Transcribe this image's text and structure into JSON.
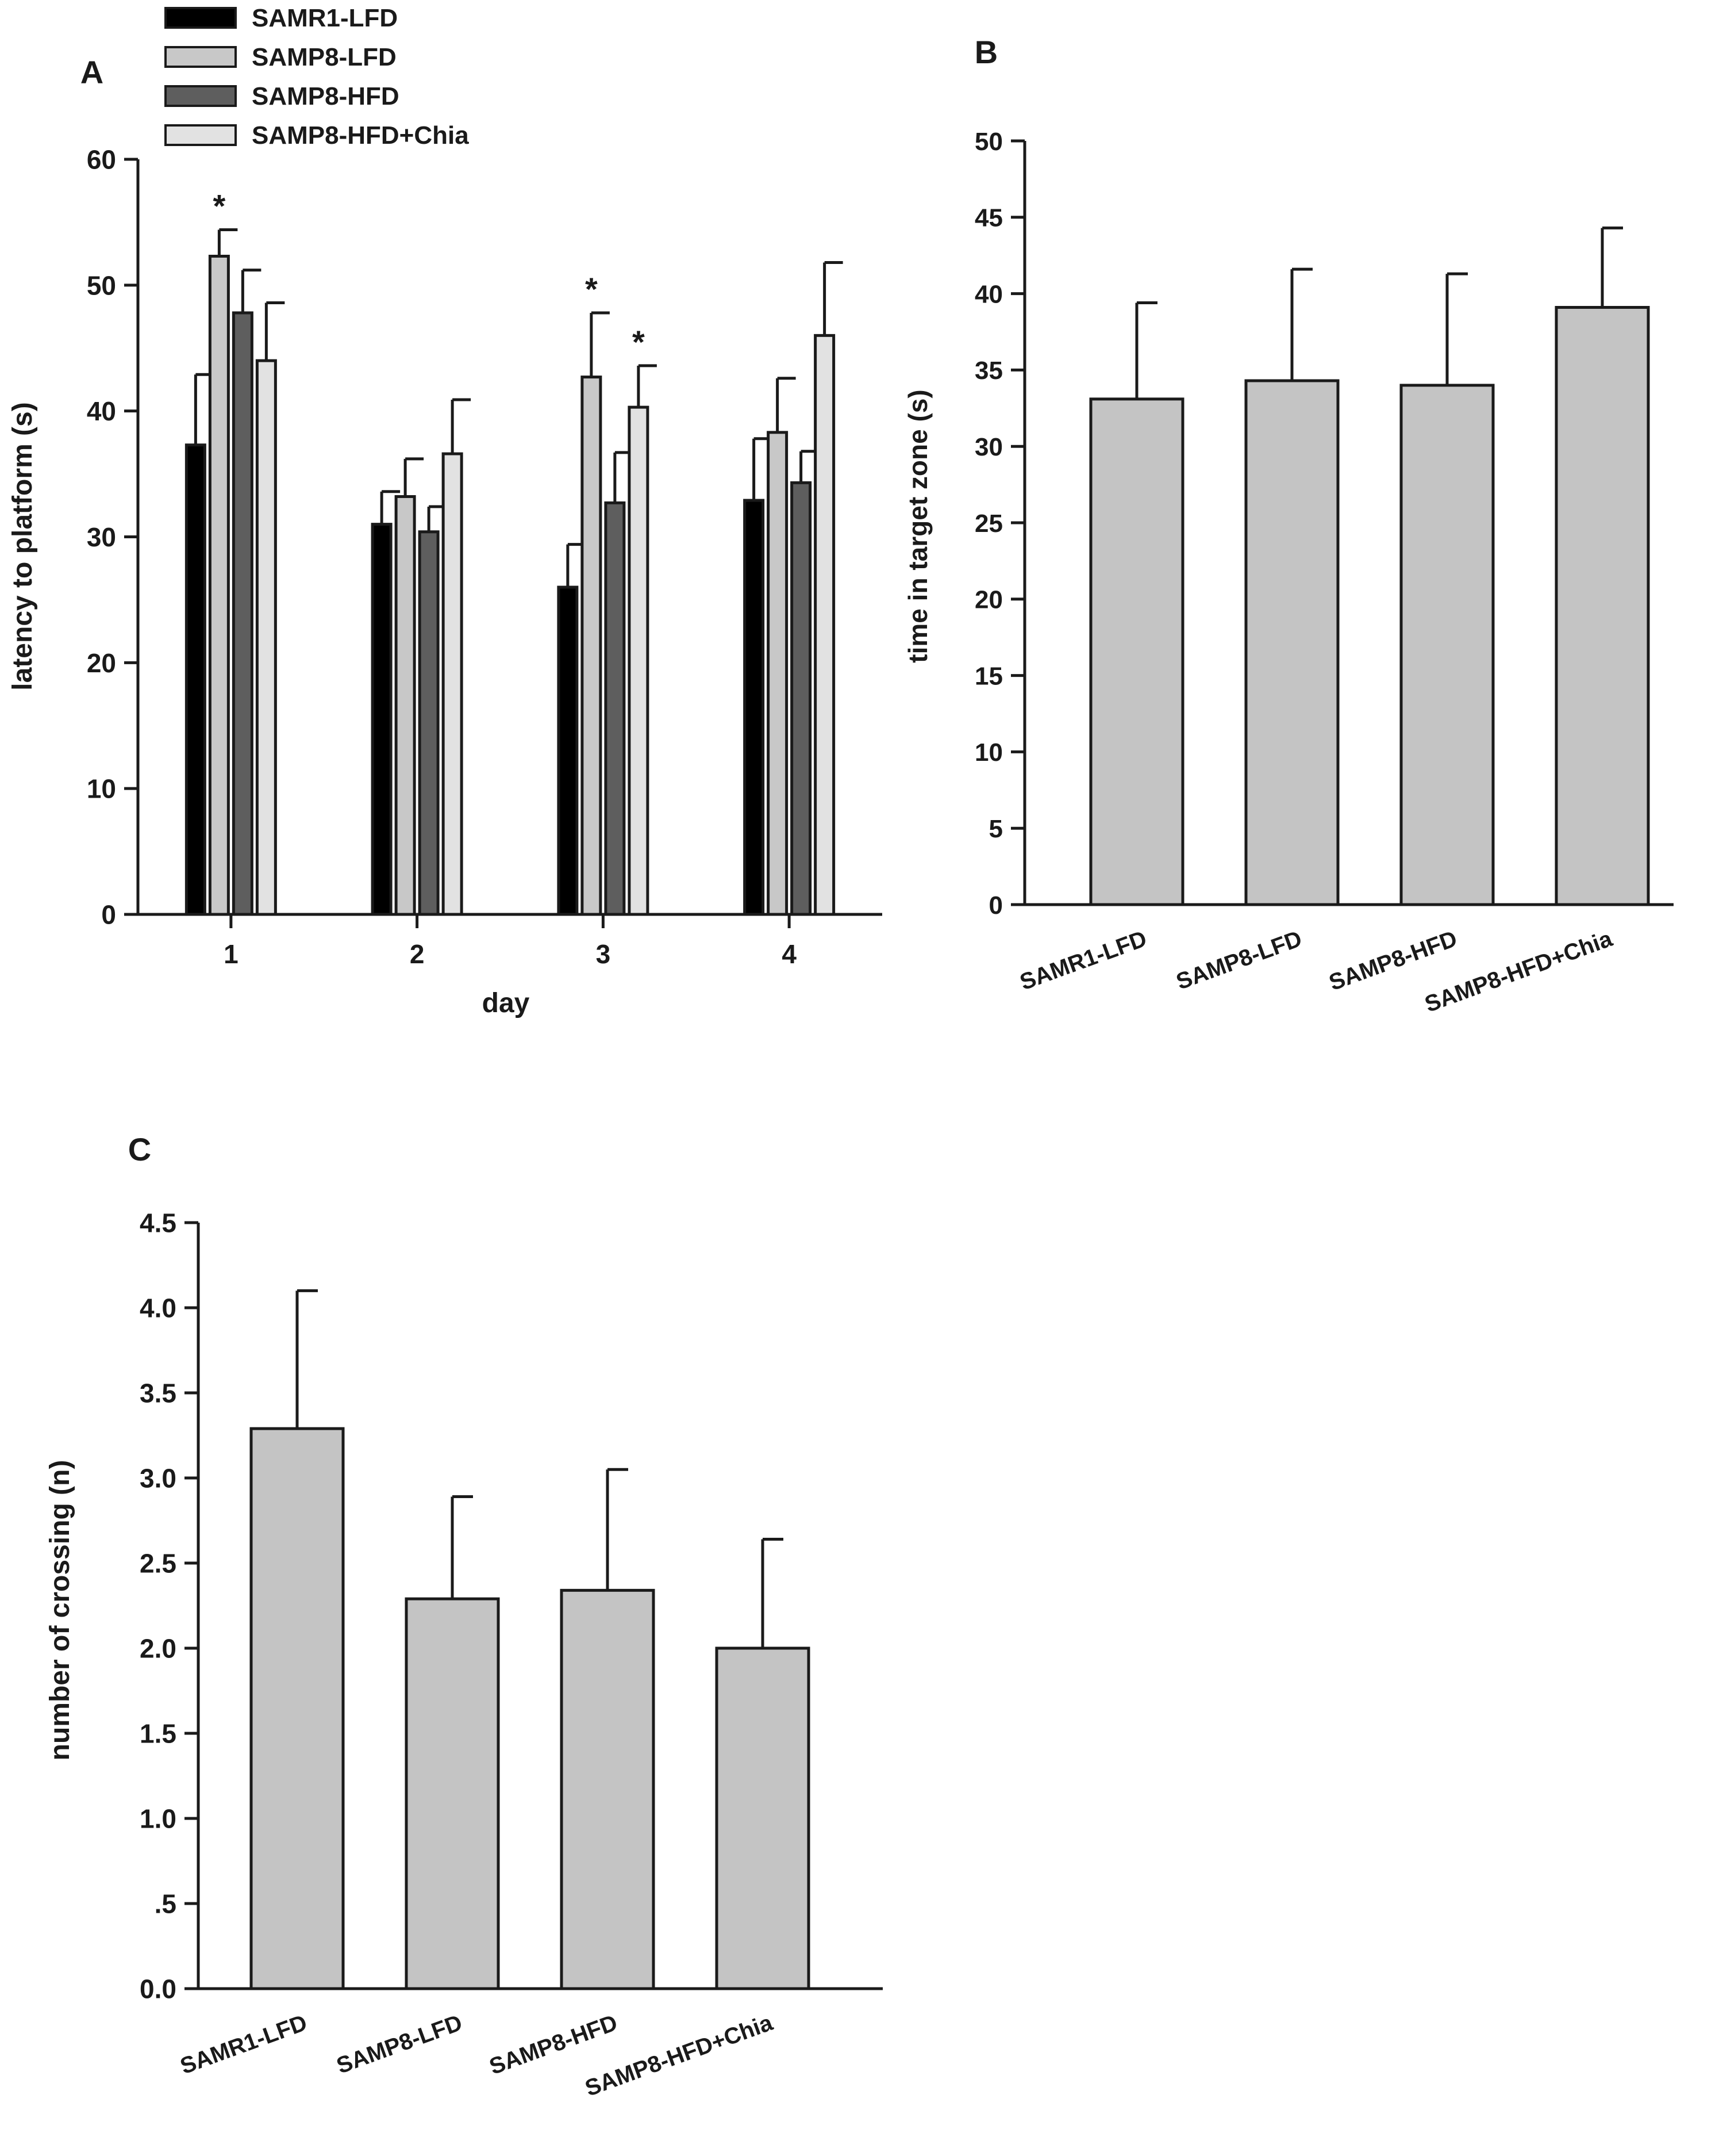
{
  "chart_data": [
    {
      "id": "A",
      "type": "bar",
      "panel_label": "A",
      "title": "",
      "xlabel": "day",
      "ylabel": "latency to platform (s)",
      "ylim": [
        0,
        60
      ],
      "yticks": [
        0,
        10,
        20,
        30,
        40,
        50,
        60
      ],
      "categories": [
        "1",
        "2",
        "3",
        "4"
      ],
      "legend_position": "top-left",
      "series": [
        {
          "name": "SAMR1-LFD",
          "color": "#000000",
          "values": [
            37.3,
            31.0,
            26.0,
            32.9
          ],
          "errors": [
            5.6,
            2.6,
            3.4,
            4.9
          ],
          "markers": [
            "",
            "",
            "",
            ""
          ]
        },
        {
          "name": "SAMP8-LFD",
          "color": "#c8c8c8",
          "values": [
            52.3,
            33.2,
            42.7,
            38.3
          ],
          "errors": [
            2.1,
            3.0,
            5.1,
            4.3
          ],
          "markers": [
            "*",
            "",
            "*",
            ""
          ]
        },
        {
          "name": "SAMP8-HFD",
          "color": "#5e5e5e",
          "values": [
            47.8,
            30.4,
            32.7,
            34.3
          ],
          "errors": [
            3.4,
            2.0,
            4.0,
            2.5
          ],
          "markers": [
            "",
            "",
            "",
            ""
          ]
        },
        {
          "name": "SAMP8-HFD+Chia",
          "color": "#e2e2e2",
          "values": [
            44.0,
            36.6,
            40.3,
            46.0
          ],
          "errors": [
            4.6,
            4.3,
            3.3,
            5.8
          ],
          "markers": [
            "",
            "",
            "*",
            ""
          ]
        }
      ]
    },
    {
      "id": "B",
      "type": "bar",
      "panel_label": "B",
      "title": "",
      "xlabel": "",
      "ylabel": "time in target zone (s)",
      "ylim": [
        0,
        50
      ],
      "yticks": [
        0,
        5,
        10,
        15,
        20,
        25,
        30,
        35,
        40,
        45,
        50
      ],
      "categories": [
        "SAMR1-LFD",
        "SAMP8-LFD",
        "SAMP8-HFD",
        "SAMP8-HFD+Chia"
      ],
      "color": "#c4c4c4",
      "values": [
        33.1,
        34.3,
        34.0,
        39.1
      ],
      "errors": [
        6.3,
        7.3,
        7.3,
        5.2
      ]
    },
    {
      "id": "C",
      "type": "bar",
      "panel_label": "C",
      "title": "",
      "xlabel": "",
      "ylabel": "number of crossing (n)",
      "ylim": [
        0,
        4.5
      ],
      "yticks": [
        0,
        0.5,
        1,
        1.5,
        2,
        2.5,
        3,
        3.5,
        4,
        4.5
      ],
      "ytick_labels": [
        "0.0",
        ".5",
        "1.0",
        "1.5",
        "2.0",
        "2.5",
        "3.0",
        "3.5",
        "4.0",
        "4.5"
      ],
      "categories": [
        "SAMR1-LFD",
        "SAMP8-LFD",
        "SAMP8-HFD",
        "SAMP8-HFD+Chia"
      ],
      "color": "#c4c4c4",
      "values": [
        3.29,
        2.29,
        2.34,
        2.0
      ],
      "errors": [
        0.81,
        0.6,
        0.71,
        0.64
      ]
    }
  ]
}
